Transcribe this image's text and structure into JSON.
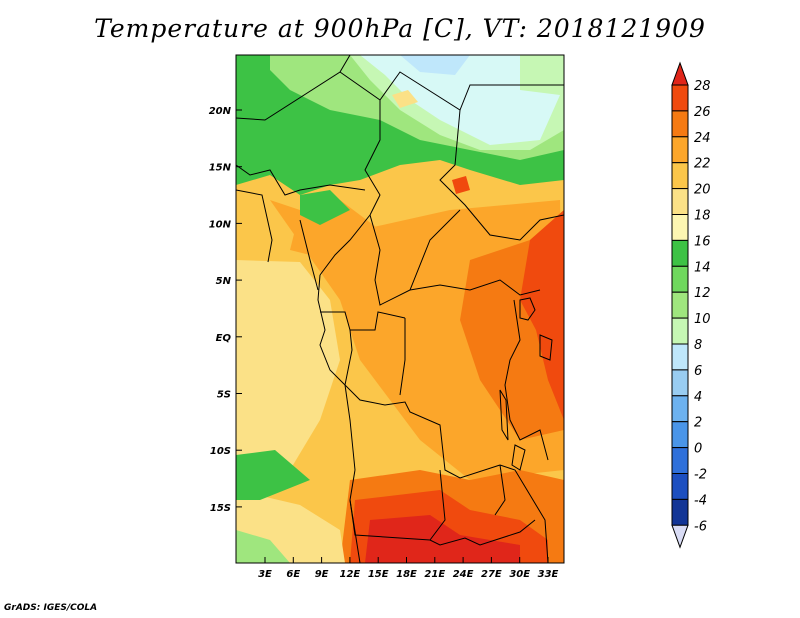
{
  "title": "Temperature at 900hPa [C], VT: 2018121909",
  "credit": "GrADS: IGES/COLA",
  "map": {
    "lat_labels": [
      "20N",
      "15N",
      "10N",
      "5N",
      "EQ",
      "5S",
      "10S",
      "15S"
    ],
    "lon_labels": [
      "3E",
      "6E",
      "9E",
      "12E",
      "15E",
      "18E",
      "21E",
      "24E",
      "27E",
      "30E",
      "33E"
    ],
    "lon_range": [
      0,
      35
    ],
    "lat_range": [
      -20,
      25
    ]
  },
  "colorbar": {
    "labels": [
      "28",
      "26",
      "24",
      "22",
      "20",
      "18",
      "16",
      "14",
      "12",
      "10",
      "8",
      "6",
      "4",
      "2",
      "0",
      "-2",
      "-4",
      "-6"
    ],
    "colors": [
      "#e0261a",
      "#f04a0e",
      "#f57a12",
      "#fca62a",
      "#fbc64a",
      "#fbe187",
      "#fdf6b2",
      "#3dc245",
      "#6fd85e",
      "#9fe67e",
      "#c6f7b4",
      "#bfe7fb",
      "#99cdf2",
      "#6db2ef",
      "#4a95e8",
      "#2f70da",
      "#1c4fc0",
      "#123596",
      "#0a1f6e"
    ],
    "top_color": "#e0261a",
    "bottom_color": "#d9dcf5"
  }
}
